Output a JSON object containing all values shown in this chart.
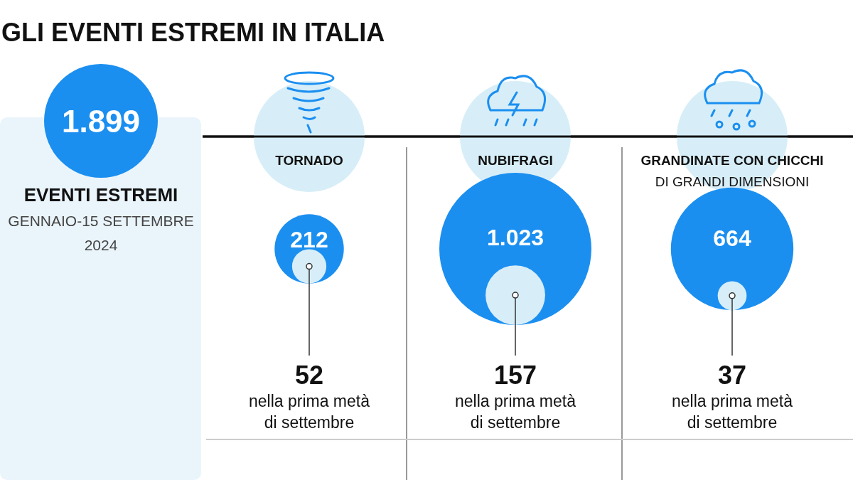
{
  "chart_data": {
    "type": "other",
    "title": "GLI EVENTI ESTREMI IN ITALIA",
    "categories": [
      "TORNADO",
      "NUBIFRAGI",
      "GRANDINATE CON CHICCHI DI GRANDI DIMENSIONI"
    ],
    "series": [
      {
        "color": "#1b8ff0",
        "values": [
          212,
          1023,
          664
        ],
        "value_labels": [
          "212",
          "1.023",
          "664"
        ]
      },
      {
        "color": "#d7eef8",
        "values": [
          52,
          157,
          37
        ],
        "value_labels": [
          "52",
          "157",
          "37"
        ]
      }
    ],
    "annotations": [
      "1.899",
      "EVENTI ESTREMI",
      "GENNAIO-15 SETTEMBRE 2024",
      "nella prima metà di settembre"
    ]
  }
}
